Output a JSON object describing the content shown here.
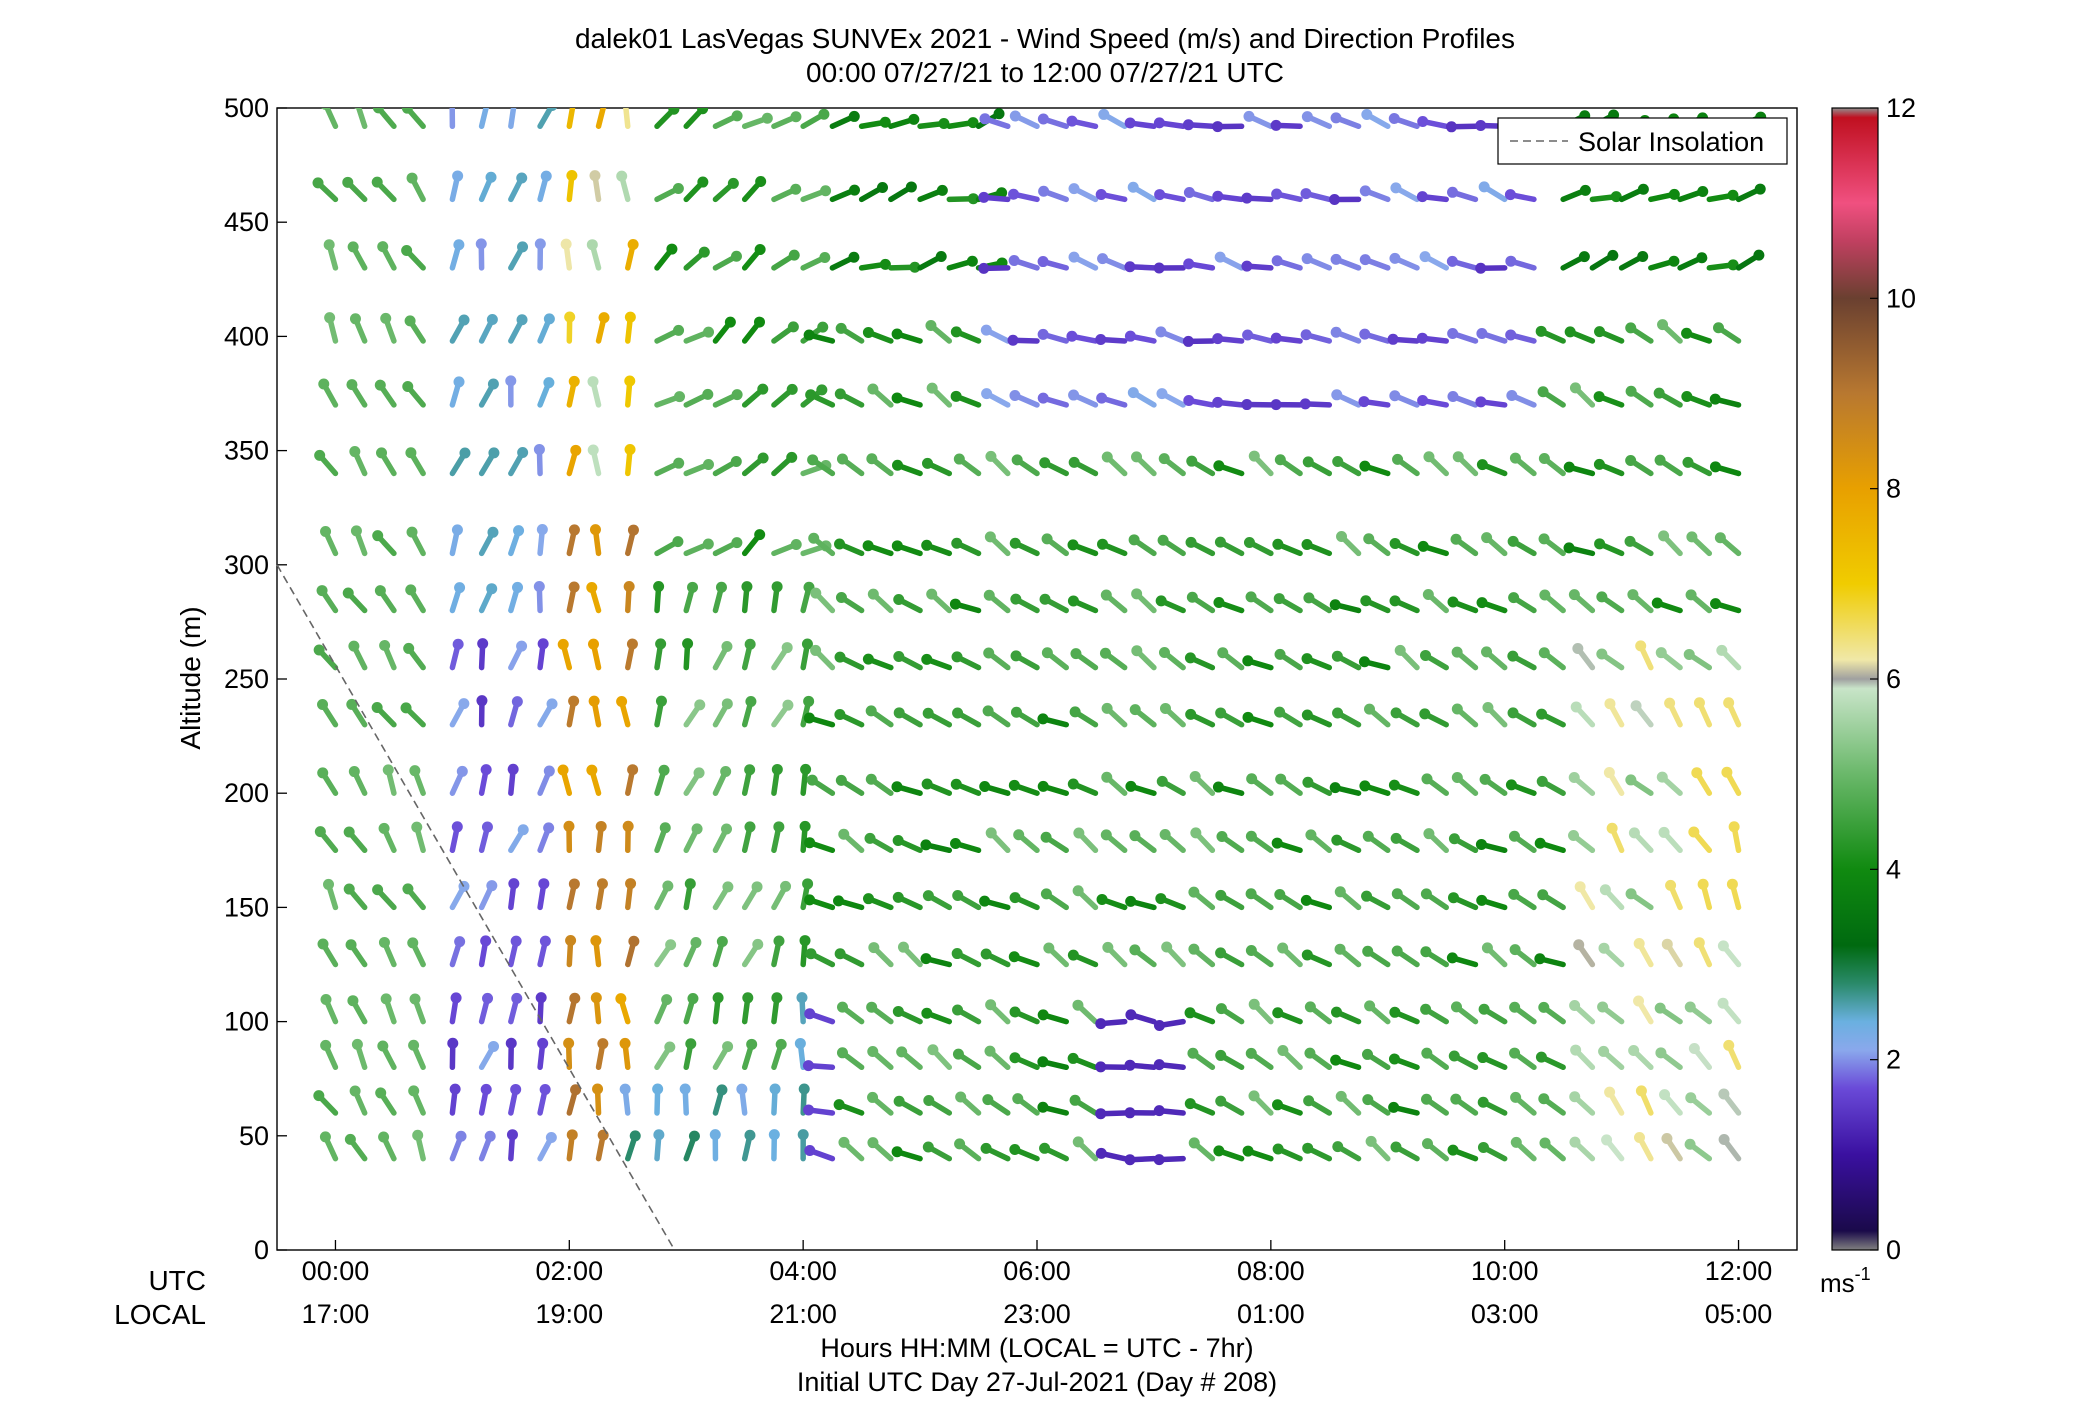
{
  "chart_data": {
    "type": "wind_barb_profile",
    "title": "dalek01 LasVegas SUNVEx 2021 - Wind Speed (m/s) and Direction Profiles",
    "subtitle": "00:00 07/27/21 to 12:00 07/27/21  UTC",
    "ylabel": "Altitude (m)",
    "xlabel": "Hours HH:MM  (LOCAL = UTC - 7hr)",
    "xlabel2": "Initial UTC Day 27-Jul-2021 (Day # 208)",
    "ylim": [
      0,
      500
    ],
    "xlim_hours": [
      -0.5,
      12.5
    ],
    "yticks": [
      "0",
      "50",
      "100",
      "150",
      "200",
      "250",
      "300",
      "350",
      "400",
      "450",
      "500"
    ],
    "xticks_hours": [
      0,
      2,
      4,
      6,
      8,
      10,
      12
    ],
    "xticks_utc": [
      "00:00",
      "02:00",
      "04:00",
      "06:00",
      "08:00",
      "10:00",
      "12:00"
    ],
    "xticks_local": [
      "17:00",
      "19:00",
      "21:00",
      "23:00",
      "01:00",
      "03:00",
      "05:00"
    ],
    "row_label_utc": "UTC",
    "row_label_local": "LOCAL",
    "legend": {
      "label": "Solar Insolation",
      "placement": "top-right"
    },
    "solar_insolation_line": {
      "x_hours": [
        -0.5,
        2.9
      ],
      "y": [
        300,
        0
      ]
    },
    "colorbar": {
      "label": "ms",
      "label_sup": "-1",
      "range": [
        0,
        12
      ],
      "ticks": [
        "0",
        "2",
        "4",
        "6",
        "8",
        "10",
        "12"
      ],
      "stops": [
        {
          "v": 0.0,
          "c": "#808080"
        },
        {
          "v": 0.2,
          "c": "#1a0a4a"
        },
        {
          "v": 1.0,
          "c": "#3a10a0"
        },
        {
          "v": 1.7,
          "c": "#6a4ad8"
        },
        {
          "v": 2.1,
          "c": "#8aa8ec"
        },
        {
          "v": 2.4,
          "c": "#6ab0e0"
        },
        {
          "v": 2.8,
          "c": "#2a8a6a"
        },
        {
          "v": 3.2,
          "c": "#006a10"
        },
        {
          "v": 4.0,
          "c": "#108a10"
        },
        {
          "v": 5.0,
          "c": "#6ab86a"
        },
        {
          "v": 5.9,
          "c": "#c8e4c8"
        },
        {
          "v": 6.0,
          "c": "#a0a0a0"
        },
        {
          "v": 6.2,
          "c": "#f0e8a8"
        },
        {
          "v": 7.0,
          "c": "#f0cc00"
        },
        {
          "v": 8.0,
          "c": "#e8a000"
        },
        {
          "v": 9.0,
          "c": "#b87830"
        },
        {
          "v": 10.0,
          "c": "#6a4030"
        },
        {
          "v": 10.6,
          "c": "#c04060"
        },
        {
          "v": 11.0,
          "c": "#f05080"
        },
        {
          "v": 11.9,
          "c": "#c01020"
        },
        {
          "v": 12.0,
          "c": "#909090"
        }
      ]
    },
    "altitudes_m": [
      40,
      60,
      80,
      100,
      125,
      150,
      175,
      200,
      230,
      255,
      280,
      305,
      340,
      370,
      398,
      430,
      460,
      492
    ],
    "times_hours": [
      0,
      0.25,
      0.5,
      0.75,
      1,
      1.25,
      1.5,
      1.75,
      2,
      2.25,
      2.5,
      2.75,
      3,
      3.25,
      3.5,
      3.75,
      4,
      4.25,
      4.5,
      4.75,
      5,
      5.25,
      5.5,
      5.75,
      6,
      6.25,
      6.5,
      6.75,
      7,
      7.25,
      7.5,
      7.75,
      8,
      8.25,
      8.5,
      8.75,
      9,
      9.25,
      9.5,
      9.75,
      10,
      10.25,
      10.5,
      10.75,
      11,
      11.25,
      11.5,
      11.75,
      12
    ],
    "profile_note": "Each cell is a wind vector: speed (m/s) and heading of the stick in degrees clockwise from north.",
    "profile_samples": [
      {
        "t": 0.0,
        "alt": 40,
        "speed": 4.6,
        "dir": 300
      },
      {
        "t": 1.5,
        "alt": 40,
        "speed": 1.2,
        "dir": 300
      },
      {
        "t": 2.0,
        "alt": 150,
        "speed": 8.8,
        "dir": 0
      },
      {
        "t": 2.0,
        "alt": 300,
        "speed": 7.8,
        "dir": 0
      },
      {
        "t": 6.0,
        "alt": 200,
        "speed": 4.0,
        "dir": 300
      },
      {
        "t": 7.0,
        "alt": 100,
        "speed": 1.3,
        "dir": 270
      },
      {
        "t": 7.0,
        "alt": 492,
        "speed": 1.3,
        "dir": 270
      },
      {
        "t": 12.0,
        "alt": 200,
        "speed": 6.8,
        "dir": 330
      }
    ]
  }
}
